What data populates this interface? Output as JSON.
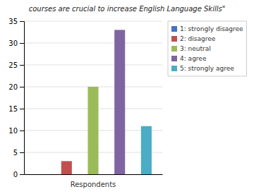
{
  "chart_data": {
    "type": "bar",
    "title": "courses are crucial to increase English Language Skills\"",
    "xlabel": "Respondents",
    "categories": [
      "1: strongly disagree",
      "2: disagree",
      "3: neutral",
      "4: agree",
      "5: strongly agree"
    ],
    "values": [
      0,
      3,
      20,
      33,
      11
    ],
    "colors": [
      "#4472c4",
      "#c0504d",
      "#9bbb59",
      "#8064a2",
      "#4bacc6"
    ],
    "ylim": [
      0,
      35
    ],
    "yticks": [
      0,
      5,
      10,
      15,
      20,
      25,
      30,
      35
    ],
    "grid": true,
    "legend": "upper right",
    "tick_labels": "y"
  }
}
